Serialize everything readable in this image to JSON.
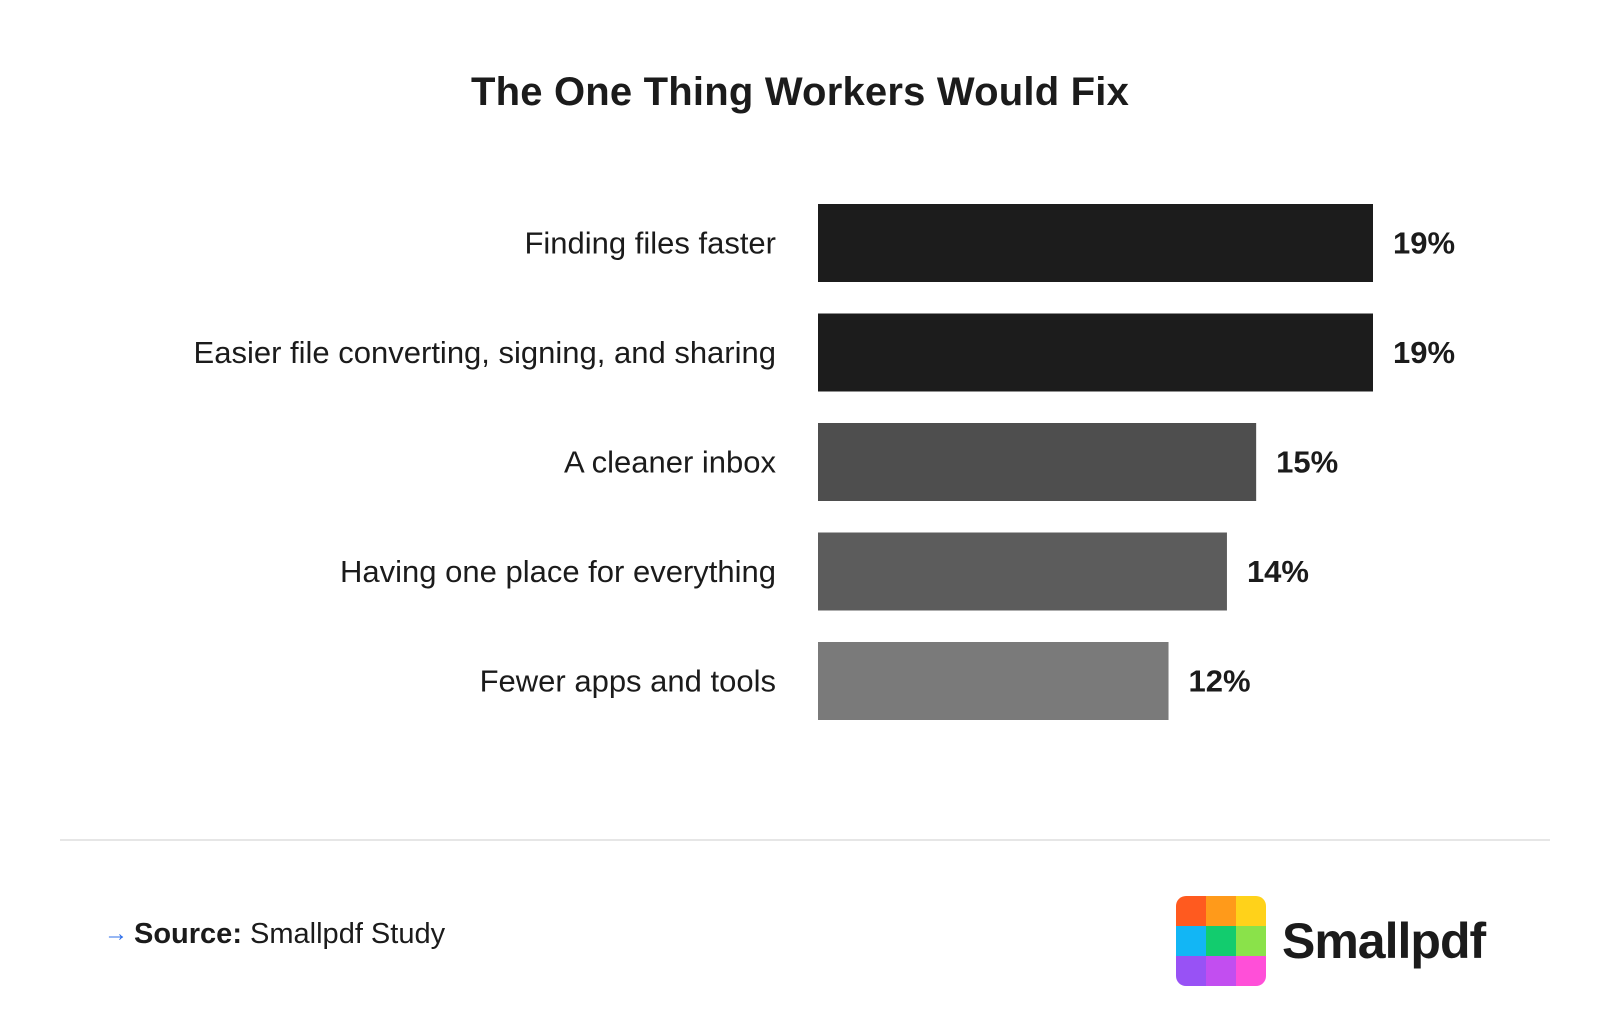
{
  "chart_data": {
    "type": "bar",
    "orientation": "horizontal",
    "title": "The One Thing Workers Would Fix",
    "xlabel": "",
    "ylabel": "",
    "categories": [
      "Finding files faster",
      "Easier file converting, signing, and sharing",
      "A cleaner inbox",
      "Having one place for everything",
      "Fewer apps and tools"
    ],
    "values": [
      19,
      19,
      15,
      14,
      12
    ],
    "value_labels": [
      "19%",
      "19%",
      "15%",
      "14%",
      "12%"
    ],
    "bar_colors": [
      "#1c1c1c",
      "#1c1c1c",
      "#4e4e4e",
      "#5c5c5c",
      "#7a7a7a"
    ],
    "xlim": [
      0,
      19
    ],
    "grid": false,
    "legend": "none"
  },
  "footer": {
    "source_key": "Source:",
    "source_value": "Smallpdf Study"
  },
  "logo": {
    "text": "Smallpdf",
    "colors": [
      "#ff5a1f",
      "#ff9a1a",
      "#ffd21a",
      "#12b6f5",
      "#12cc6e",
      "#8ae24a",
      "#9852f5",
      "#c24ef0",
      "#ff4fd8"
    ]
  }
}
